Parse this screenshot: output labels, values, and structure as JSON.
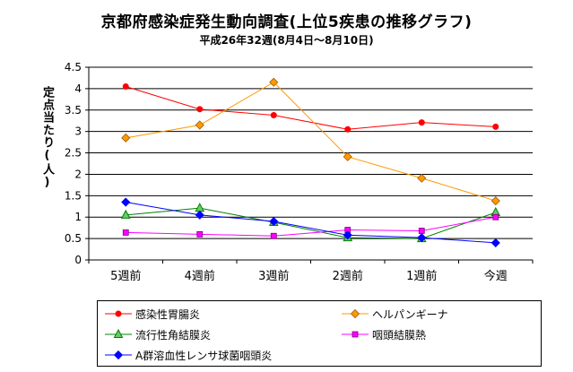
{
  "title": "京都府感染症発生動向調査(上位5疾患の推移グラフ)",
  "subtitle": "平成26年32週(8月4日〜8月10日)",
  "chart_data": {
    "type": "line",
    "categories": [
      "5週前",
      "4週前",
      "3週前",
      "2週前",
      "1週前",
      "今週"
    ],
    "ylabel": "定点当たり(人)",
    "ylim": [
      0,
      4.5
    ],
    "yticks": [
      "0",
      "0.5",
      "1",
      "1.5",
      "2",
      "2.5",
      "3",
      "3.5",
      "4",
      "4.5"
    ],
    "grid": "horizontal",
    "legend_position": "bottom",
    "series": [
      {
        "name": "感染性胃腸炎",
        "color": "#ff0000",
        "marker": "circle",
        "values": [
          4.05,
          3.52,
          3.38,
          3.05,
          3.21,
          3.11
        ]
      },
      {
        "name": "ヘルパンギーナ",
        "color": "#ff9900",
        "marker": "diamond",
        "values": [
          2.85,
          3.15,
          4.15,
          2.41,
          1.91,
          1.38
        ]
      },
      {
        "name": "流行性角結膜炎",
        "color": "#008000",
        "marker": "triangle",
        "values": [
          1.05,
          1.21,
          0.88,
          0.52,
          0.5,
          1.11
        ]
      },
      {
        "name": "咽頭結膜熱",
        "color": "#ff00ff",
        "marker": "square",
        "values": [
          0.64,
          0.6,
          0.56,
          0.7,
          0.68,
          1.0
        ]
      },
      {
        "name": "A群溶血性レンサ球菌咽頭炎",
        "color": "#0000ff",
        "marker": "diamond",
        "values": [
          1.35,
          1.05,
          0.9,
          0.58,
          0.52,
          0.4
        ]
      }
    ]
  }
}
